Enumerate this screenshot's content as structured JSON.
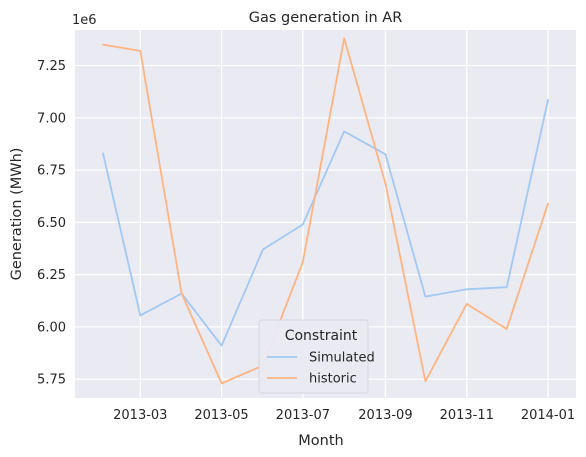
{
  "chart_data": {
    "type": "line",
    "title": "Gas generation in AR",
    "xlabel": "Month",
    "ylabel": "Generation (MWh)",
    "y_offset_label": "1e6",
    "x": [
      "2013-02-01",
      "2013-03-01",
      "2013-04-01",
      "2013-05-01",
      "2013-06-01",
      "2013-07-01",
      "2013-08-01",
      "2013-09-01",
      "2013-10-01",
      "2013-11-01",
      "2013-12-01",
      "2014-01-01"
    ],
    "x_ticks": [
      "2013-03-01",
      "2013-05-01",
      "2013-07-01",
      "2013-09-01",
      "2013-11-01",
      "2014-01-01"
    ],
    "x_tick_labels": [
      "2013-03",
      "2013-05",
      "2013-07",
      "2013-09",
      "2013-11",
      "2014-01"
    ],
    "x_range": [
      "2013-01-11",
      "2014-01-22"
    ],
    "y_ticks": [
      5.75,
      6.0,
      6.25,
      6.5,
      6.75,
      7.0,
      7.25
    ],
    "y_tick_labels": [
      "5.75",
      "6.00",
      "6.25",
      "6.50",
      "6.75",
      "7.00",
      "7.25"
    ],
    "ylim": [
      5.66,
      7.42
    ],
    "grid": true,
    "legend": {
      "title": "Constraint",
      "placement": "lower center"
    },
    "series": [
      {
        "name": "Simulated",
        "color": "#a1c9f4",
        "values": [
          6.83,
          6.055,
          6.16,
          5.91,
          6.37,
          6.49,
          6.935,
          6.825,
          6.145,
          6.18,
          6.19,
          7.085
        ]
      },
      {
        "name": "historic",
        "color": "#ffb482",
        "values": [
          7.35,
          7.32,
          6.16,
          5.73,
          5.815,
          6.31,
          7.38,
          6.685,
          5.74,
          6.11,
          5.99,
          6.59
        ]
      }
    ]
  }
}
